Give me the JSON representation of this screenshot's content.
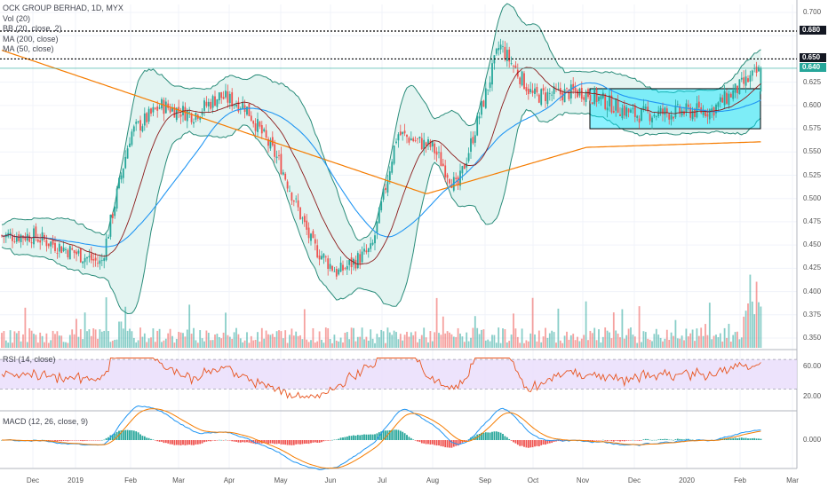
{
  "legend": {
    "title": "OCK GROUP BERHAD, 1D, MYX",
    "vol": "Vol (20)",
    "bb": "BB (20, close, 2)",
    "ma200": "MA (200, close)",
    "ma50": "MA (50, close)"
  },
  "rsi_label": "RSI (14, close)",
  "macd_label": "MACD (12, 26, close, 9)",
  "price_badges": {
    "p680": "0.680",
    "p650": "0.650",
    "p640": "0.640"
  },
  "colors": {
    "up": "#26a69a",
    "down": "#ef5350",
    "bb": "#2a8c7a",
    "bbfill": "#e3f4f1",
    "ma200": "#f57c00",
    "ma50": "#2196f3",
    "mid": "#8b1a1a",
    "rsi": "#e8541e",
    "rsiband": "#e9dcfb",
    "macd": "#2196f3",
    "signal": "#f57c00",
    "box": "#4dd0e1",
    "badge_green": "#26a69a"
  },
  "chart_data": [
    {
      "type": "candlestick",
      "title": "OCK GROUP BERHAD, 1D, MYX",
      "x_ticks": [
        "Dec",
        "2019",
        "Feb",
        "Mar",
        "Apr",
        "May",
        "Jun",
        "Jul",
        "Aug",
        "Sep",
        "Oct",
        "Nov",
        "Dec",
        "2020",
        "Feb",
        "Mar"
      ],
      "y_ticks": [
        "0.700",
        "0.675",
        "0.650",
        "0.625",
        "0.600",
        "0.575",
        "0.550",
        "0.525",
        "0.500",
        "0.475",
        "0.450",
        "0.425",
        "0.400",
        "0.375",
        "0.350"
      ],
      "ylim": [
        0.34,
        0.705
      ],
      "horizontal_levels": [
        0.68,
        0.65
      ],
      "last_price": 0.64,
      "anchors": [
        {
          "date": "2018-12",
          "close": 0.46
        },
        {
          "date": "2019-01-15",
          "close": 0.43
        },
        {
          "date": "2019-02-01",
          "close": 0.57
        },
        {
          "date": "2019-02-20",
          "close": 0.6
        },
        {
          "date": "2019-03-10",
          "close": 0.59
        },
        {
          "date": "2019-03-25",
          "close": 0.61
        },
        {
          "date": "2019-04-10",
          "close": 0.6
        },
        {
          "date": "2019-04-30",
          "close": 0.54
        },
        {
          "date": "2019-05-20",
          "close": 0.45
        },
        {
          "date": "2019-06-05",
          "close": 0.42
        },
        {
          "date": "2019-06-25",
          "close": 0.445
        },
        {
          "date": "2019-07-10",
          "close": 0.57
        },
        {
          "date": "2019-08-01",
          "close": 0.555
        },
        {
          "date": "2019-08-15",
          "close": 0.51
        },
        {
          "date": "2019-09-01",
          "close": 0.61
        },
        {
          "date": "2019-09-10",
          "close": 0.665
        },
        {
          "date": "2019-10-01",
          "close": 0.61
        },
        {
          "date": "2019-11-01",
          "close": 0.615
        },
        {
          "date": "2019-12-01",
          "close": 0.59
        },
        {
          "date": "2020-01-15",
          "close": 0.595
        },
        {
          "date": "2020-02-14",
          "close": 0.64
        }
      ]
    },
    {
      "type": "line",
      "title": "RSI (14, close)",
      "y_ticks": [
        "60.00",
        "20.00"
      ],
      "band": [
        30,
        70
      ]
    },
    {
      "type": "line",
      "title": "MACD (12, 26, close, 9)",
      "y_ticks": [
        "0.000"
      ]
    }
  ]
}
